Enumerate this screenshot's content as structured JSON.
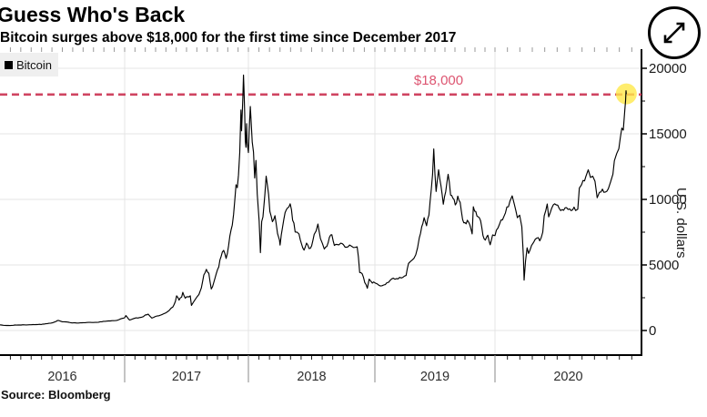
{
  "header": {
    "title": "Guess Who's Back",
    "subtitle": "Bitcoin surges above $18,000 for the first time since December 2017"
  },
  "legend": {
    "label": "Bitcoin",
    "swatch_color": "#000000"
  },
  "threshold": {
    "label": "$18,000",
    "value": 18000
  },
  "source": {
    "text": "Source: Bloomberg"
  },
  "expand_button": {
    "icon": "expand-arrows-icon"
  },
  "y_axis": {
    "label": "U.S. dollars",
    "tick_labels": [
      "0",
      "5000",
      "10000",
      "15000",
      "20000"
    ]
  },
  "x_axis": {
    "tick_labels": [
      "2016",
      "2017",
      "2018",
      "2019",
      "2020"
    ]
  },
  "colors": {
    "line": "#000000",
    "grid": "#e4e4e4",
    "axis": "#000000",
    "tick_label": "#1a1a1a",
    "year_label": "#2e2e2e",
    "minor_tick": "#999999",
    "threshold_line": "#cf4461",
    "threshold_text": "#dd5571",
    "highlight": "#ffe84a"
  },
  "chart_data": {
    "type": "line",
    "title": "Guess Who's Back",
    "subtitle": "Bitcoin surges above $18,000 for the first time since December 2017",
    "xlabel": "",
    "ylabel": "U.S. dollars",
    "x_years": [
      2016,
      2017,
      2018,
      2019,
      2020
    ],
    "x_range": [
      2016.0,
      2020.88
    ],
    "y_ticks": [
      0,
      5000,
      10000,
      15000,
      20000
    ],
    "y_minor_step": 2500,
    "ylim": [
      0,
      20000
    ],
    "grid": true,
    "legend_position": "top-left",
    "threshold_line": {
      "value": 18000,
      "label": "$18,000",
      "style": "dashed"
    },
    "last_point_highlighted": true,
    "series": [
      {
        "name": "Bitcoin",
        "points": [
          [
            2016.0,
            430
          ],
          [
            2016.04,
            390
          ],
          [
            2016.08,
            375
          ],
          [
            2016.12,
            415
          ],
          [
            2016.17,
            418
          ],
          [
            2016.21,
            425
          ],
          [
            2016.25,
            435
          ],
          [
            2016.29,
            450
          ],
          [
            2016.33,
            455
          ],
          [
            2016.38,
            535
          ],
          [
            2016.42,
            580
          ],
          [
            2016.45,
            700
          ],
          [
            2016.47,
            765
          ],
          [
            2016.5,
            670
          ],
          [
            2016.54,
            655
          ],
          [
            2016.58,
            575
          ],
          [
            2016.6,
            590
          ],
          [
            2016.63,
            575
          ],
          [
            2016.67,
            605
          ],
          [
            2016.71,
            615
          ],
          [
            2016.75,
            610
          ],
          [
            2016.79,
            635
          ],
          [
            2016.83,
            700
          ],
          [
            2016.87,
            730
          ],
          [
            2016.9,
            745
          ],
          [
            2016.94,
            780
          ],
          [
            2016.98,
            905
          ],
          [
            2017.0,
            963
          ],
          [
            2017.01,
            1120
          ],
          [
            2017.03,
            890
          ],
          [
            2017.04,
            790
          ],
          [
            2017.08,
            920
          ],
          [
            2017.12,
            985
          ],
          [
            2017.15,
            1050
          ],
          [
            2017.17,
            1190
          ],
          [
            2017.19,
            1250
          ],
          [
            2017.22,
            945
          ],
          [
            2017.25,
            1080
          ],
          [
            2017.29,
            1180
          ],
          [
            2017.33,
            1340
          ],
          [
            2017.36,
            1550
          ],
          [
            2017.39,
            1800
          ],
          [
            2017.41,
            2250
          ],
          [
            2017.42,
            2680
          ],
          [
            2017.44,
            2320
          ],
          [
            2017.46,
            2550
          ],
          [
            2017.47,
            2880
          ],
          [
            2017.49,
            2450
          ],
          [
            2017.51,
            2550
          ],
          [
            2017.53,
            2650
          ],
          [
            2017.54,
            1940
          ],
          [
            2017.57,
            2400
          ],
          [
            2017.6,
            2750
          ],
          [
            2017.62,
            3250
          ],
          [
            2017.64,
            4250
          ],
          [
            2017.66,
            4650
          ],
          [
            2017.68,
            4350
          ],
          [
            2017.7,
            3150
          ],
          [
            2017.72,
            3650
          ],
          [
            2017.74,
            4350
          ],
          [
            2017.76,
            4850
          ],
          [
            2017.78,
            5650
          ],
          [
            2017.8,
            6100
          ],
          [
            2017.82,
            5550
          ],
          [
            2017.84,
            6500
          ],
          [
            2017.85,
            7250
          ],
          [
            2017.87,
            8000
          ],
          [
            2017.88,
            8900
          ],
          [
            2017.89,
            9950
          ],
          [
            2017.9,
            11150
          ],
          [
            2017.91,
            10850
          ],
          [
            2017.92,
            11900
          ],
          [
            2017.93,
            13650
          ],
          [
            2017.94,
            16850
          ],
          [
            2017.945,
            15150
          ],
          [
            2017.955,
            17700
          ],
          [
            2017.96,
            19400
          ],
          [
            2017.965,
            18200
          ],
          [
            2017.97,
            16550
          ],
          [
            2017.975,
            14350
          ],
          [
            2017.98,
            13850
          ],
          [
            2017.985,
            15650
          ],
          [
            2017.99,
            14300
          ],
          [
            2018.0,
            13600
          ],
          [
            2018.005,
            14950
          ],
          [
            2018.015,
            17100
          ],
          [
            2018.02,
            16200
          ],
          [
            2018.03,
            14300
          ],
          [
            2018.04,
            13550
          ],
          [
            2018.05,
            11600
          ],
          [
            2018.06,
            12850
          ],
          [
            2018.07,
            10300
          ],
          [
            2018.085,
            8350
          ],
          [
            2018.095,
            5950
          ],
          [
            2018.105,
            8250
          ],
          [
            2018.115,
            8600
          ],
          [
            2018.13,
            10250
          ],
          [
            2018.14,
            11650
          ],
          [
            2018.16,
            10350
          ],
          [
            2018.17,
            9050
          ],
          [
            2018.19,
            8250
          ],
          [
            2018.21,
            8650
          ],
          [
            2018.23,
            7450
          ],
          [
            2018.245,
            6850
          ],
          [
            2018.25,
            6550
          ],
          [
            2018.27,
            7950
          ],
          [
            2018.29,
            8950
          ],
          [
            2018.31,
            9250
          ],
          [
            2018.33,
            9650
          ],
          [
            2018.35,
            8450
          ],
          [
            2018.37,
            7550
          ],
          [
            2018.4,
            7400
          ],
          [
            2018.42,
            6700
          ],
          [
            2018.44,
            6150
          ],
          [
            2018.46,
            6700
          ],
          [
            2018.48,
            6350
          ],
          [
            2018.5,
            6550
          ],
          [
            2018.52,
            7350
          ],
          [
            2018.55,
            8150
          ],
          [
            2018.57,
            7050
          ],
          [
            2018.6,
            6250
          ],
          [
            2018.62,
            6450
          ],
          [
            2018.64,
            7050
          ],
          [
            2018.66,
            7300
          ],
          [
            2018.68,
            6450
          ],
          [
            2018.7,
            6550
          ],
          [
            2018.73,
            6600
          ],
          [
            2018.75,
            6450
          ],
          [
            2018.78,
            6350
          ],
          [
            2018.8,
            6450
          ],
          [
            2018.83,
            6350
          ],
          [
            2018.86,
            6400
          ],
          [
            2018.87,
            5550
          ],
          [
            2018.88,
            4400
          ],
          [
            2018.9,
            4250
          ],
          [
            2018.92,
            3600
          ],
          [
            2018.94,
            3250
          ],
          [
            2018.955,
            3950
          ],
          [
            2018.97,
            3750
          ],
          [
            2018.99,
            3750
          ],
          [
            2019.02,
            3600
          ],
          [
            2019.06,
            3450
          ],
          [
            2019.1,
            3650
          ],
          [
            2019.14,
            3900
          ],
          [
            2019.18,
            3950
          ],
          [
            2019.22,
            4000
          ],
          [
            2019.26,
            4150
          ],
          [
            2019.28,
            5150
          ],
          [
            2019.31,
            5350
          ],
          [
            2019.34,
            5750
          ],
          [
            2019.37,
            7100
          ],
          [
            2019.39,
            7950
          ],
          [
            2019.41,
            8600
          ],
          [
            2019.43,
            7900
          ],
          [
            2019.45,
            8750
          ],
          [
            2019.47,
            10750
          ],
          [
            2019.48,
            11900
          ],
          [
            2019.49,
            13750
          ],
          [
            2019.5,
            11950
          ],
          [
            2019.51,
            10550
          ],
          [
            2019.53,
            12250
          ],
          [
            2019.55,
            11050
          ],
          [
            2019.57,
            9750
          ],
          [
            2019.59,
            10650
          ],
          [
            2019.61,
            11850
          ],
          [
            2019.63,
            10350
          ],
          [
            2019.65,
            10150
          ],
          [
            2019.67,
            9550
          ],
          [
            2019.69,
            10350
          ],
          [
            2019.71,
            9850
          ],
          [
            2019.73,
            8450
          ],
          [
            2019.75,
            8150
          ],
          [
            2019.77,
            8350
          ],
          [
            2019.79,
            8050
          ],
          [
            2019.81,
            7400
          ],
          [
            2019.82,
            9450
          ],
          [
            2019.84,
            9150
          ],
          [
            2019.86,
            8700
          ],
          [
            2019.88,
            8450
          ],
          [
            2019.9,
            7300
          ],
          [
            2019.92,
            6950
          ],
          [
            2019.94,
            7250
          ],
          [
            2019.96,
            6550
          ],
          [
            2019.98,
            7250
          ],
          [
            2020.0,
            7200
          ],
          [
            2020.02,
            7800
          ],
          [
            2020.04,
            8400
          ],
          [
            2020.06,
            8700
          ],
          [
            2020.08,
            9350
          ],
          [
            2020.1,
            9900
          ],
          [
            2020.115,
            10250
          ],
          [
            2020.13,
            9650
          ],
          [
            2020.15,
            8600
          ],
          [
            2020.165,
            8800
          ],
          [
            2020.18,
            7950
          ],
          [
            2020.19,
            5700
          ],
          [
            2020.195,
            3850
          ],
          [
            2020.205,
            5350
          ],
          [
            2020.215,
            6250
          ],
          [
            2020.225,
            5900
          ],
          [
            2020.245,
            6450
          ],
          [
            2020.26,
            6750
          ],
          [
            2020.28,
            7100
          ],
          [
            2020.3,
            6850
          ],
          [
            2020.32,
            7550
          ],
          [
            2020.33,
            8750
          ],
          [
            2020.35,
            9600
          ],
          [
            2020.36,
            8700
          ],
          [
            2020.38,
            9250
          ],
          [
            2020.4,
            9550
          ],
          [
            2020.42,
            9450
          ],
          [
            2020.44,
            9150
          ],
          [
            2020.46,
            9100
          ],
          [
            2020.48,
            9250
          ],
          [
            2020.5,
            9150
          ],
          [
            2020.52,
            9100
          ],
          [
            2020.54,
            9200
          ],
          [
            2020.555,
            9300
          ],
          [
            2020.565,
            10900
          ],
          [
            2020.58,
            11100
          ],
          [
            2020.6,
            11350
          ],
          [
            2020.61,
            11750
          ],
          [
            2020.625,
            12250
          ],
          [
            2020.64,
            11650
          ],
          [
            2020.655,
            11750
          ],
          [
            2020.67,
            11400
          ],
          [
            2020.685,
            10150
          ],
          [
            2020.7,
            10450
          ],
          [
            2020.72,
            10700
          ],
          [
            2020.74,
            10650
          ],
          [
            2020.76,
            10850
          ],
          [
            2020.775,
            11450
          ],
          [
            2020.79,
            11900
          ],
          [
            2020.8,
            13050
          ],
          [
            2020.815,
            13550
          ],
          [
            2020.83,
            13950
          ],
          [
            2020.84,
            14850
          ],
          [
            2020.85,
            15550
          ],
          [
            2020.86,
            15450
          ],
          [
            2020.865,
            16250
          ],
          [
            2020.87,
            16900
          ],
          [
            2020.875,
            17650
          ],
          [
            2020.878,
            18350
          ],
          [
            2020.88,
            18050
          ]
        ]
      }
    ]
  }
}
